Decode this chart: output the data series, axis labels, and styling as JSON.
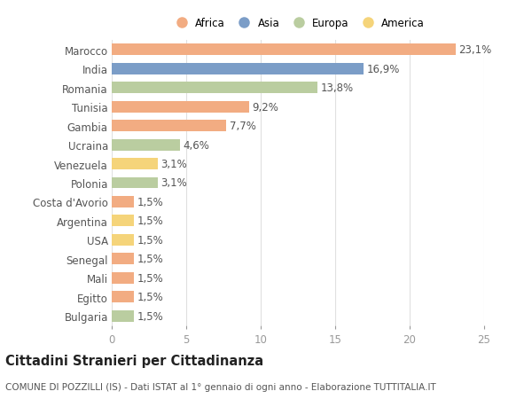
{
  "countries": [
    "Marocco",
    "India",
    "Romania",
    "Tunisia",
    "Gambia",
    "Ucraina",
    "Venezuela",
    "Polonia",
    "Costa d'Avorio",
    "Argentina",
    "USA",
    "Senegal",
    "Mali",
    "Egitto",
    "Bulgaria"
  ],
  "values": [
    23.1,
    16.9,
    13.8,
    9.2,
    7.7,
    4.6,
    3.1,
    3.1,
    1.5,
    1.5,
    1.5,
    1.5,
    1.5,
    1.5,
    1.5
  ],
  "labels": [
    "23,1%",
    "16,9%",
    "13,8%",
    "9,2%",
    "7,7%",
    "4,6%",
    "3,1%",
    "3,1%",
    "1,5%",
    "1,5%",
    "1,5%",
    "1,5%",
    "1,5%",
    "1,5%",
    "1,5%"
  ],
  "continents": [
    "Africa",
    "Asia",
    "Europa",
    "Africa",
    "Africa",
    "Europa",
    "America",
    "Europa",
    "Africa",
    "America",
    "America",
    "Africa",
    "Africa",
    "Africa",
    "Europa"
  ],
  "colors": {
    "Africa": "#F2AC82",
    "Asia": "#7B9DC7",
    "Europa": "#BACDA0",
    "America": "#F5D47A"
  },
  "legend_order": [
    "Africa",
    "Asia",
    "Europa",
    "America"
  ],
  "title": "Cittadini Stranieri per Cittadinanza",
  "subtitle": "COMUNE DI POZZILLI (IS) - Dati ISTAT al 1° gennaio di ogni anno - Elaborazione TUTTITALIA.IT",
  "xlim": [
    0,
    25
  ],
  "xticks": [
    0,
    5,
    10,
    15,
    20,
    25
  ],
  "background_color": "#ffffff",
  "grid_color": "#e0e0e0",
  "bar_height": 0.6,
  "label_fontsize": 8.5,
  "tick_fontsize": 8.5,
  "title_fontsize": 10.5,
  "subtitle_fontsize": 7.5
}
